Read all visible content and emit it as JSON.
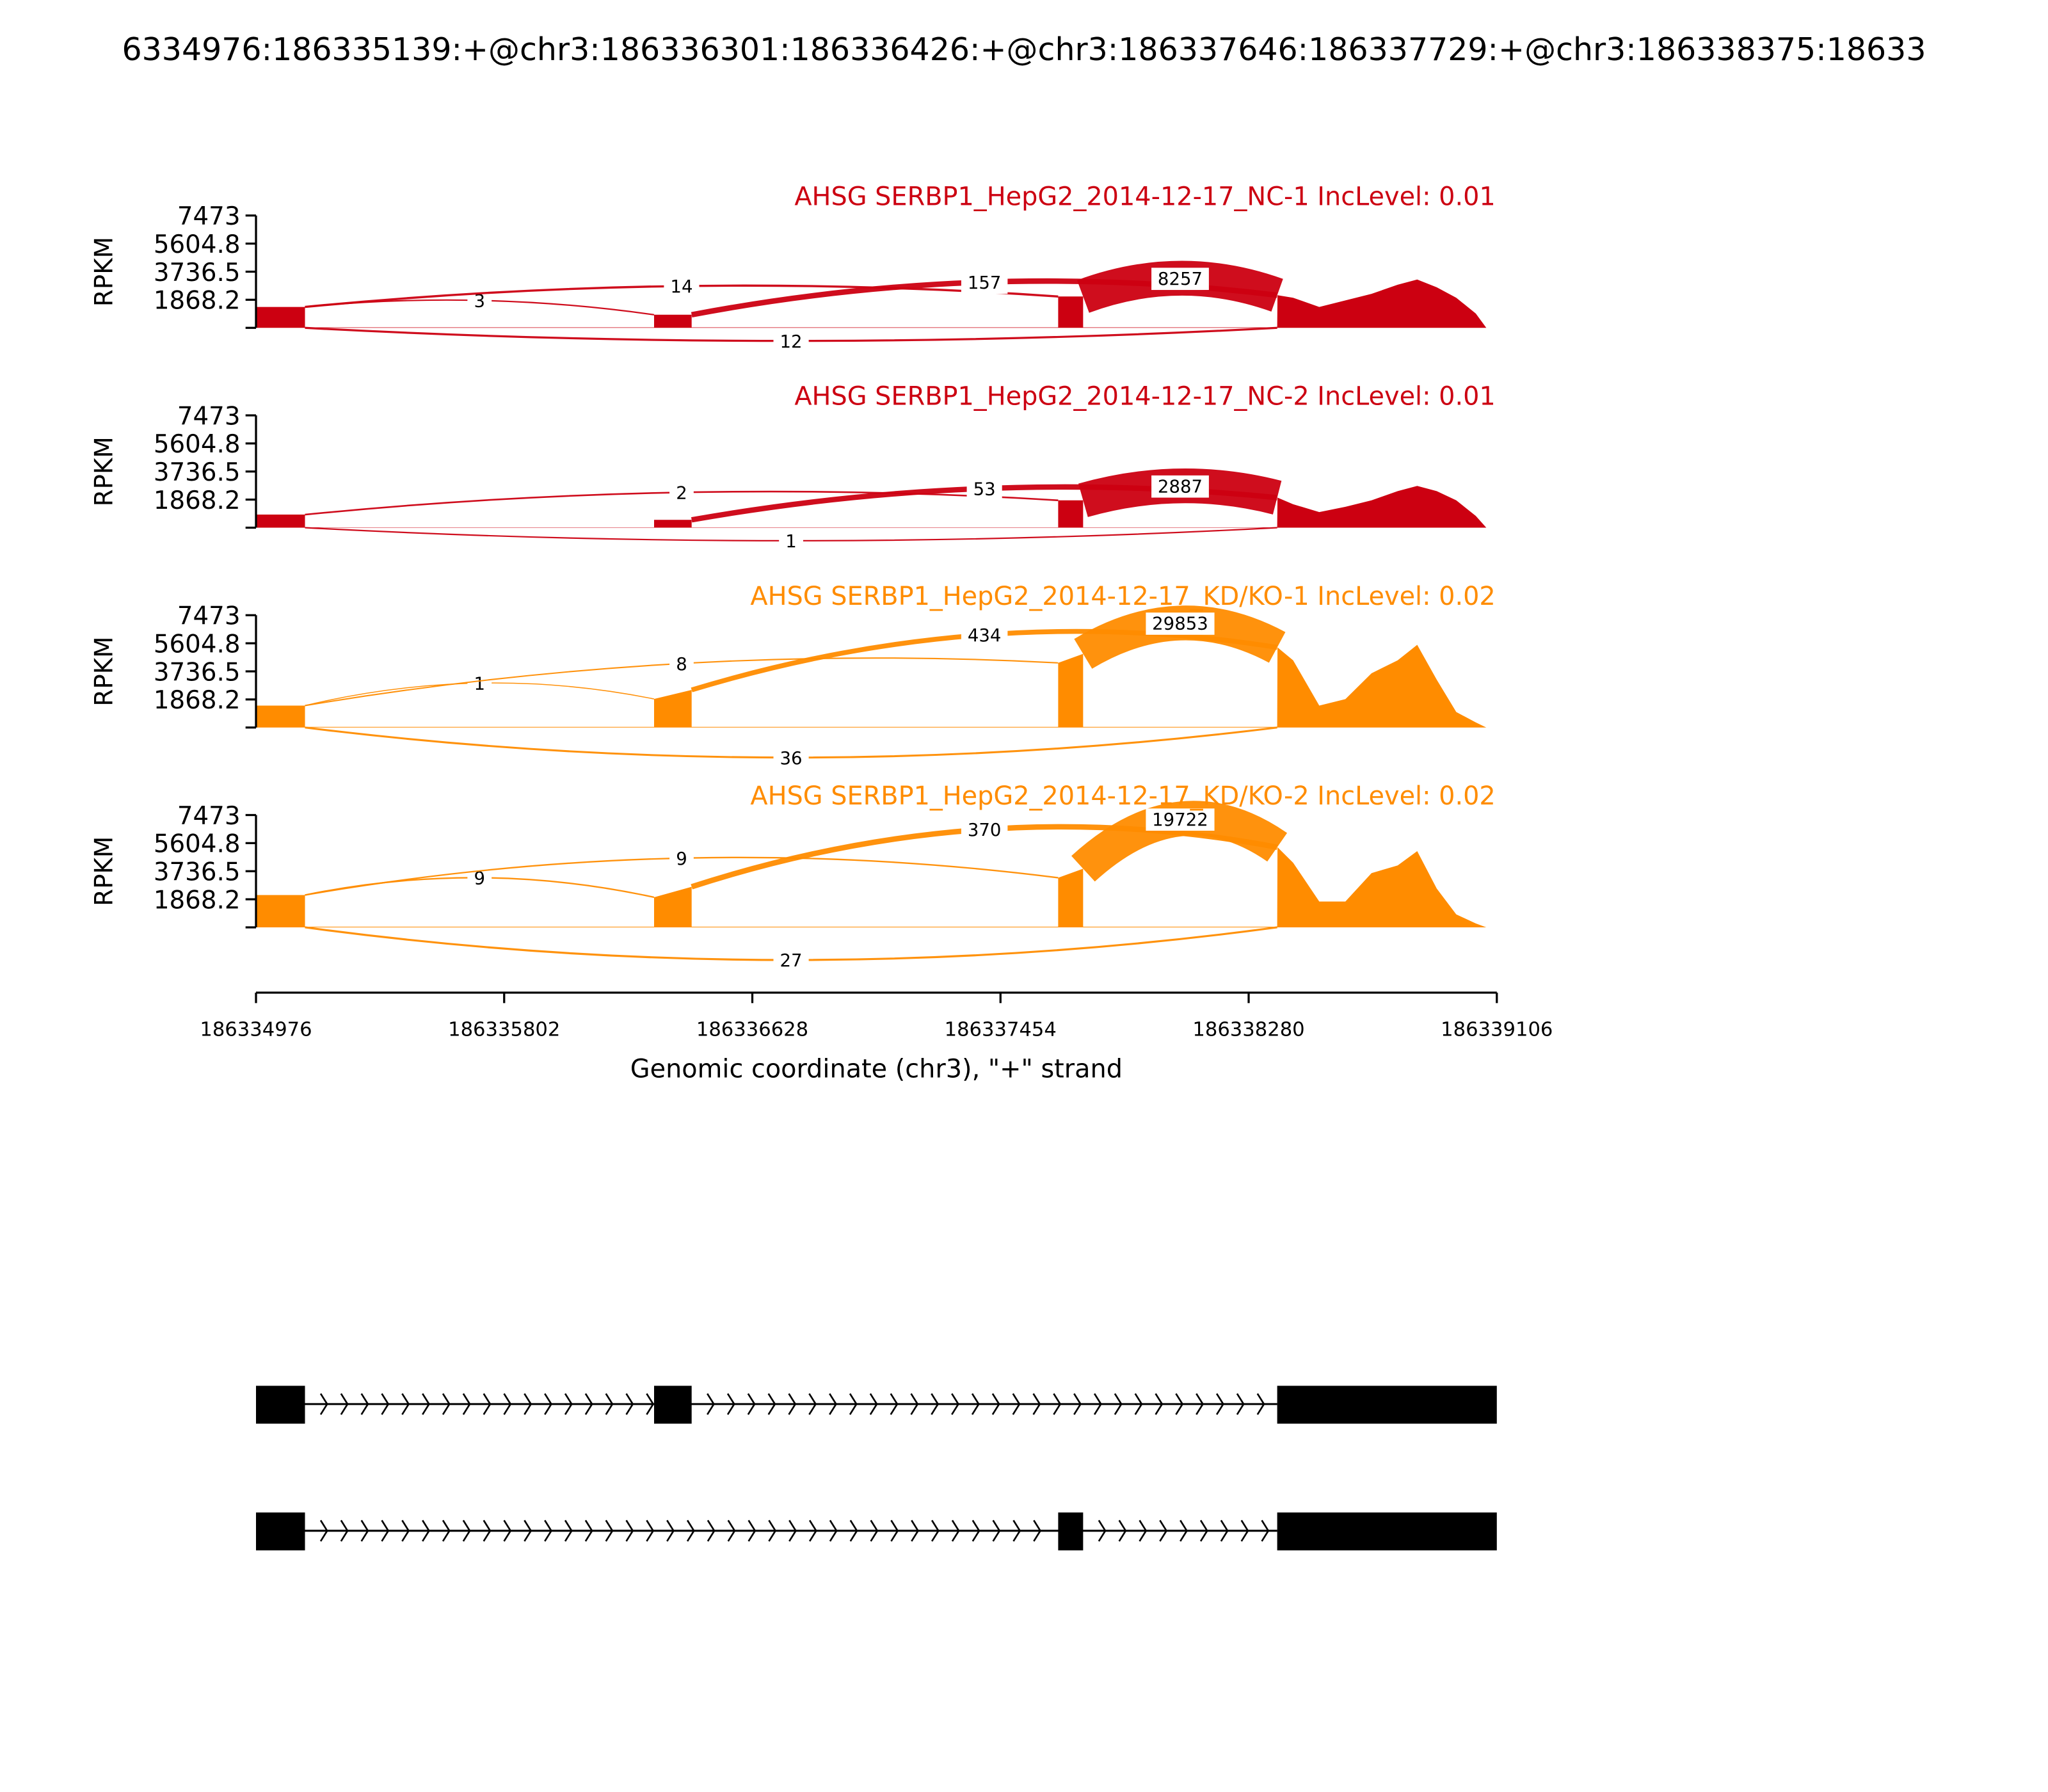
{
  "chart_data": {
    "type": "area",
    "title": "6334976:186335139:+@chr3:186336301:186336426:+@chr3:186337646:186337729:+@chr3:186338375:18633",
    "xlabel": "Genomic coordinate (chr3), \"+\" strand",
    "ylabel": "RPKM",
    "xlim": [
      186334976,
      186339106
    ],
    "ylim": [
      0,
      7473
    ],
    "xticks": [
      "186334976",
      "186335802",
      "186336628",
      "186337454",
      "186338280",
      "186339106"
    ],
    "xtick_values": [
      186334976,
      186335802,
      186336628,
      186337454,
      186338280,
      186339106
    ],
    "yticks": [
      "7473",
      "5604.8",
      "3736.5",
      "1868.2"
    ],
    "ytick_values": [
      7473,
      5604.8,
      3736.5,
      1868.2
    ],
    "exons": [
      [
        186334976,
        186335139
      ],
      [
        186336301,
        186336426
      ],
      [
        186337646,
        186337729
      ],
      [
        186338375,
        186339106
      ]
    ],
    "exon4_profile_coords": [
      186338376,
      186338428,
      186338515,
      186338602,
      186338689,
      186338776,
      186338841,
      186338906,
      186338971,
      186339036,
      186339071
    ],
    "panels": [
      {
        "title": "AHSG SERBP1_HepG2_2014-12-17_NC-1 IncLevel: 0.01",
        "color": "#cc0011",
        "coverage": {
          "exon1": [
            1390,
            1390
          ],
          "exon2": [
            870,
            870
          ],
          "exon3": [
            2085,
            2085
          ],
          "intron": 30,
          "exon4": [
            2170,
            2000,
            1390,
            1825,
            2260,
            2870,
            3215,
            2700,
            2000,
            955,
            0
          ]
        },
        "junctions": [
          {
            "from": 186335139,
            "to": 186336301,
            "count": 3,
            "side": "above"
          },
          {
            "from": 186335139,
            "to": 186337646,
            "count": 14,
            "side": "above"
          },
          {
            "from": 186336426,
            "to": 186338375,
            "count": 157,
            "side": "above"
          },
          {
            "from": 186337729,
            "to": 186338375,
            "count": 8257,
            "side": "above"
          },
          {
            "from": 186335139,
            "to": 186338375,
            "count": 12,
            "side": "below"
          }
        ]
      },
      {
        "title": "AHSG SERBP1_HepG2_2014-12-17_NC-2 IncLevel: 0.01",
        "color": "#cc0011",
        "coverage": {
          "exon1": [
            870,
            870
          ],
          "exon2": [
            520,
            520
          ],
          "exon3": [
            1820,
            1820
          ],
          "intron": 20,
          "exon4": [
            2000,
            1560,
            1040,
            1390,
            1820,
            2430,
            2780,
            2430,
            1820,
            780,
            0
          ]
        },
        "junctions": [
          {
            "from": 186335139,
            "to": 186337646,
            "count": 2,
            "side": "above"
          },
          {
            "from": 186336426,
            "to": 186338375,
            "count": 53,
            "side": "above"
          },
          {
            "from": 186337729,
            "to": 186338375,
            "count": 2887,
            "side": "above"
          },
          {
            "from": 186335139,
            "to": 186338375,
            "count": 1,
            "side": "below"
          }
        ]
      },
      {
        "title": "AHSG SERBP1_HepG2_2014-12-17_KD/KO-1 IncLevel: 0.02",
        "color": "#ff8c00",
        "coverage": {
          "exon1": [
            1460,
            1460
          ],
          "exon2": [
            1900,
            2500
          ],
          "exon3": [
            4300,
            4900
          ],
          "intron": 40,
          "exon4": [
            5330,
            4470,
            1460,
            1890,
            3610,
            4470,
            5500,
            3180,
            1030,
            340,
            0
          ]
        },
        "junctions": [
          {
            "from": 186335139,
            "to": 186336301,
            "count": 1,
            "side": "above"
          },
          {
            "from": 186335139,
            "to": 186337646,
            "count": 8,
            "side": "above"
          },
          {
            "from": 186336426,
            "to": 186338375,
            "count": 434,
            "side": "above"
          },
          {
            "from": 186337729,
            "to": 186338375,
            "count": 29853,
            "side": "above"
          },
          {
            "from": 186335139,
            "to": 186338375,
            "count": 36,
            "side": "below"
          }
        ]
      },
      {
        "title": "AHSG SERBP1_HepG2_2014-12-17_KD/KO-2 IncLevel: 0.02",
        "color": "#ff8c00",
        "coverage": {
          "exon1": [
            2150,
            2150
          ],
          "exon2": [
            2000,
            2700
          ],
          "exon3": [
            3300,
            3900
          ],
          "intron": 40,
          "exon4": [
            5330,
            4300,
            1720,
            1720,
            3610,
            4120,
            5070,
            2580,
            860,
            260,
            0
          ]
        },
        "junctions": [
          {
            "from": 186335139,
            "to": 186336301,
            "count": 9,
            "side": "above"
          },
          {
            "from": 186335139,
            "to": 186337646,
            "count": 9,
            "side": "above"
          },
          {
            "from": 186336426,
            "to": 186338375,
            "count": 370,
            "side": "above"
          },
          {
            "from": 186337729,
            "to": 186338375,
            "count": 19722,
            "side": "above"
          },
          {
            "from": 186335139,
            "to": 186338375,
            "count": 27,
            "side": "below"
          }
        ]
      }
    ],
    "transcripts": [
      {
        "exons": [
          [
            186334976,
            186335139
          ],
          [
            186336301,
            186336426
          ],
          [
            186338375,
            186339106
          ]
        ]
      },
      {
        "exons": [
          [
            186334976,
            186335139
          ],
          [
            186337646,
            186337729
          ],
          [
            186338375,
            186339106
          ]
        ]
      }
    ]
  }
}
